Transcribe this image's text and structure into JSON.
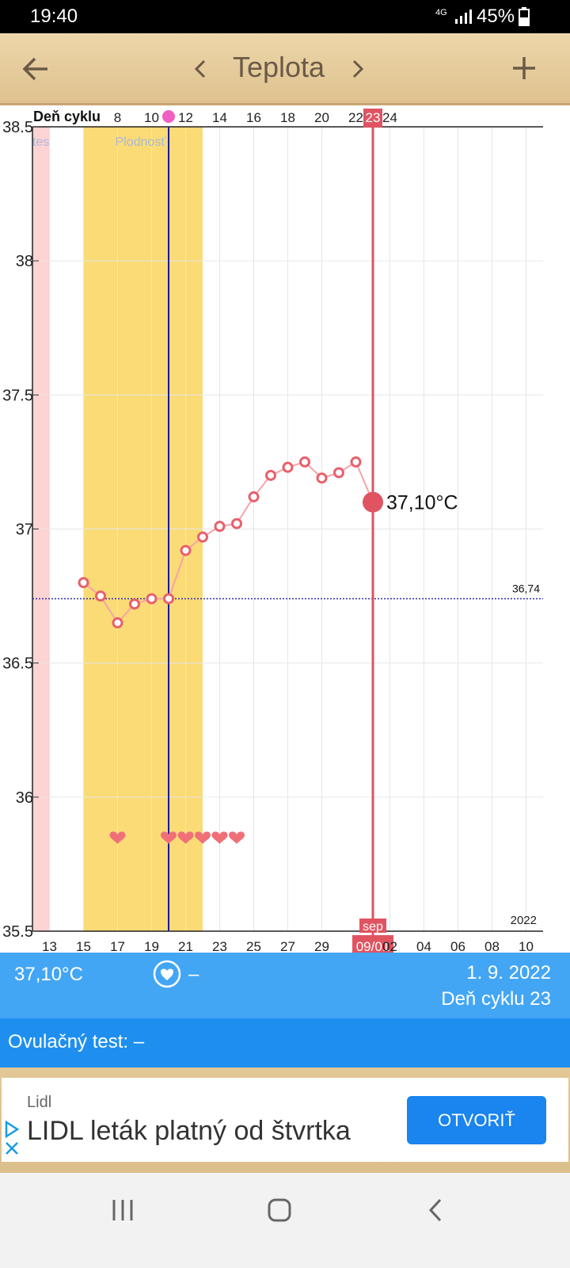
{
  "status_bar": {
    "time": "19:40",
    "network": "4G",
    "battery": "45%"
  },
  "app_bar": {
    "title": "Teplota"
  },
  "chart_data": {
    "type": "line",
    "x_title": "Deň cyklu",
    "categories": [
      null,
      "13",
      null,
      "15",
      null,
      "17",
      null,
      "19",
      null,
      "21",
      null,
      "23",
      null,
      "25",
      null,
      "27",
      null,
      "29",
      null,
      null,
      "09/01",
      "02",
      null,
      "04",
      null,
      "06",
      null,
      "08",
      null,
      "10",
      null
    ],
    "cycle_days": [
      null,
      null,
      null,
      null,
      null,
      8,
      null,
      10,
      null,
      12,
      null,
      14,
      null,
      16,
      null,
      18,
      null,
      20,
      null,
      22,
      23,
      24,
      null,
      null,
      null,
      null,
      null,
      null,
      null,
      null,
      null
    ],
    "values": [
      null,
      null,
      null,
      36.8,
      36.75,
      36.65,
      36.72,
      36.74,
      36.74,
      36.92,
      36.97,
      37.01,
      37.02,
      37.12,
      37.2,
      37.23,
      37.25,
      37.19,
      37.21,
      37.25,
      37.1,
      null,
      null,
      null,
      null,
      null,
      null,
      null,
      null,
      null,
      null
    ],
    "value_labels": [
      null,
      null,
      null,
      null,
      null,
      null,
      null,
      null,
      null,
      null,
      null,
      null,
      null,
      null,
      null,
      null,
      null,
      null,
      null,
      null,
      "37,10°C",
      null,
      null,
      null,
      null,
      null,
      null,
      null,
      null,
      null,
      null
    ],
    "color": "#e8606c",
    "line_color": "#f5a3aa",
    "ylim": [
      35.5,
      38.5
    ],
    "yticks": [
      38.5,
      38,
      37.5,
      37,
      36.5,
      36,
      35.5
    ],
    "grid": true,
    "year": "2022",
    "coverline": {
      "value": 36.74,
      "label": "36,74",
      "color": "#2a2ab0"
    },
    "bands": [
      {
        "label": "tes",
        "start": 0,
        "end": 1,
        "color": "#fdd3d3",
        "text_color": "#a8b8e0"
      },
      {
        "label": "Plodnosť",
        "start": 3,
        "end": 10,
        "color": "#fadb76",
        "text_color": "#a8b8d8"
      }
    ],
    "ovulation": {
      "index": 8,
      "color": "#1a1aa0",
      "dot_color": "#f060c0"
    },
    "selected": {
      "index": 20,
      "month": "sep",
      "color": "#e05462"
    },
    "hearts": {
      "indices": [
        5,
        8,
        9,
        10,
        11,
        12
      ],
      "color": "#f07078"
    }
  },
  "info": {
    "temperature": "37,10°C",
    "sex": "–",
    "date": "1. 9. 2022",
    "cycle_day": "Deň cyklu 23",
    "ovulation_test": "Ovulačný test: –"
  },
  "ad": {
    "advertiser": "Lidl",
    "headline": "LIDL leták platný od štvrtka",
    "button": "OTVORIŤ"
  }
}
